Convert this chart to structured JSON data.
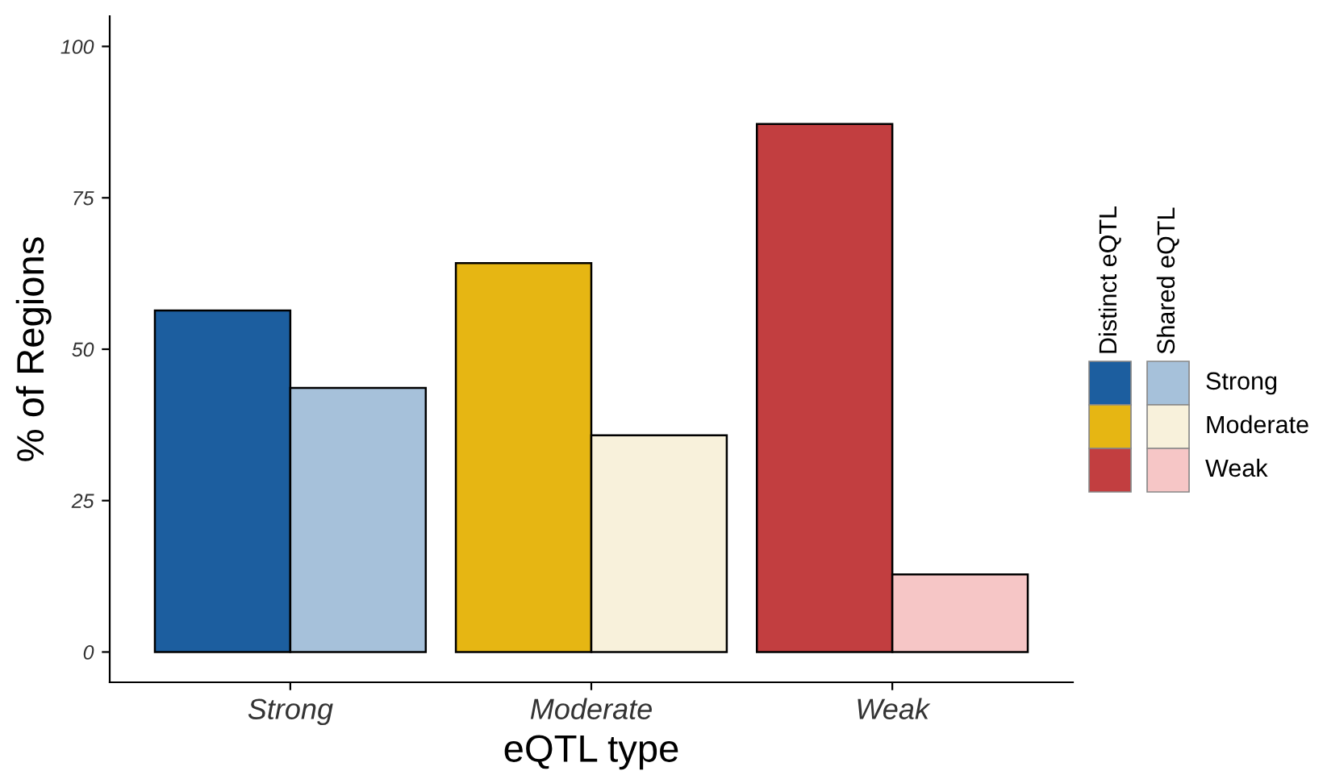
{
  "chart_data": {
    "type": "bar",
    "xlabel": "eQTL type",
    "ylabel": "% of Regions",
    "categories": [
      "Strong",
      "Moderate",
      "Weak"
    ],
    "series": [
      {
        "name": "Distinct eQTL",
        "colors": [
          "#1c5e9f",
          "#e6b613",
          "#c23e40"
        ],
        "values": [
          56.4,
          64.2,
          87.2
        ]
      },
      {
        "name": "Shared eQTL",
        "colors": [
          "#a6c1da",
          "#f8f1db",
          "#f6c6c6"
        ],
        "values": [
          43.6,
          35.8,
          12.8
        ]
      }
    ],
    "ylim": [
      -5,
      105
    ],
    "yticks": [
      0,
      25,
      50,
      75,
      100
    ],
    "grid": false,
    "legend": "right"
  }
}
